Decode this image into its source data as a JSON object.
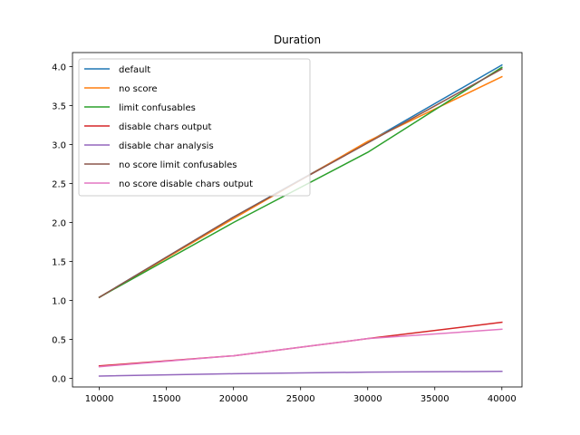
{
  "chart_data": {
    "type": "line",
    "title": "Duration",
    "xlabel": "",
    "ylabel": "",
    "x": [
      10000,
      20000,
      30000,
      40000
    ],
    "xlim": [
      8000,
      41500
    ],
    "ylim": [
      -0.11,
      4.18
    ],
    "xticks": [
      10000,
      15000,
      20000,
      25000,
      30000,
      35000,
      40000
    ],
    "yticks": [
      0.0,
      0.5,
      1.0,
      1.5,
      2.0,
      2.5,
      3.0,
      3.5,
      4.0
    ],
    "xtick_labels": [
      "10000",
      "15000",
      "20000",
      "25000",
      "30000",
      "35000",
      "40000"
    ],
    "ytick_labels": [
      "0.0",
      "0.5",
      "1.0",
      "1.5",
      "2.0",
      "2.5",
      "3.0",
      "3.5",
      "4.0"
    ],
    "grid": false,
    "legend_position": "top-left",
    "series": [
      {
        "name": "default",
        "color": "#1f77b4",
        "values": [
          1.04,
          2.07,
          3.03,
          4.02
        ]
      },
      {
        "name": "no score",
        "color": "#ff7f0e",
        "values": [
          1.04,
          2.05,
          3.04,
          3.87
        ]
      },
      {
        "name": "limit confusables",
        "color": "#2ca02c",
        "values": [
          1.04,
          2.0,
          2.9,
          3.99
        ]
      },
      {
        "name": "disable chars output",
        "color": "#d62728",
        "values": [
          0.16,
          0.29,
          0.51,
          0.72
        ]
      },
      {
        "name": "disable char analysis",
        "color": "#9467bd",
        "values": [
          0.03,
          0.06,
          0.08,
          0.09
        ]
      },
      {
        "name": "no score limit confusables",
        "color": "#8c564b",
        "values": [
          1.04,
          2.07,
          3.02,
          3.97
        ]
      },
      {
        "name": "no score disable chars output",
        "color": "#e377c2",
        "values": [
          0.15,
          0.29,
          0.51,
          0.63
        ]
      }
    ]
  }
}
